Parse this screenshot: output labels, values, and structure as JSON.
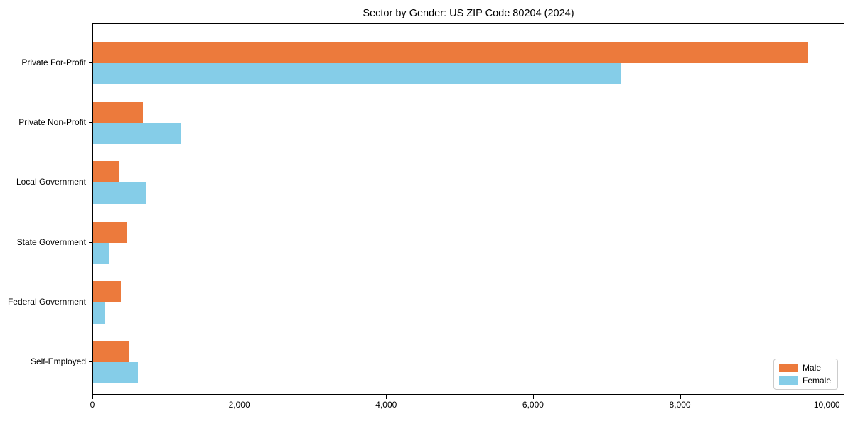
{
  "title": "Sector by Gender: US ZIP Code 80204 (2024)",
  "chart_data": {
    "type": "bar",
    "orientation": "horizontal",
    "title": "Sector by Gender: US ZIP Code 80204 (2024)",
    "xlabel": "",
    "ylabel": "",
    "grid": false,
    "legend_position": "lower right",
    "categories": [
      "Private For-Profit",
      "Private Non-Profit",
      "Local Government",
      "State Government",
      "Federal Government",
      "Self-Employed"
    ],
    "series": [
      {
        "name": "Male",
        "color": "#ec7a3c",
        "values": [
          9740,
          680,
          360,
          465,
          380,
          495
        ]
      },
      {
        "name": "Female",
        "color": "#85cde8",
        "values": [
          7190,
          1190,
          730,
          220,
          165,
          610
        ]
      }
    ],
    "xlim": [
      0,
      10240
    ],
    "x_ticks": [
      0,
      2000,
      4000,
      6000,
      8000,
      10000
    ],
    "x_tick_labels": [
      "0",
      "2,000",
      "4,000",
      "6,000",
      "8,000",
      "10,000"
    ]
  }
}
